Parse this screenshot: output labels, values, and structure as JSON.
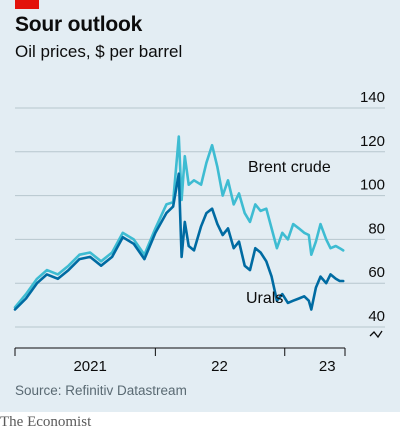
{
  "header": {
    "title": "Sour outlook",
    "subtitle": "Oil prices, $ per barrel"
  },
  "footer": {
    "source": "Source: Refinitiv Datastream",
    "brand": "The Economist"
  },
  "colors": {
    "background": "#e3edf3",
    "brent": "#3ebcd2",
    "urals": "#006ba2",
    "accent_red": "#e3120b",
    "grid": "#b7c6ce"
  },
  "chart_data": {
    "type": "line",
    "title": "Sour outlook",
    "subtitle": "Oil prices, $ per barrel",
    "xlabel": "",
    "ylabel": "",
    "ylim": [
      40,
      140
    ],
    "y_ticks": [
      40,
      60,
      80,
      100,
      120,
      140
    ],
    "y_axis_side": "right",
    "y_axis_break": true,
    "grid": true,
    "x_tick_labels": [
      {
        "label": "2021",
        "at": "2021-07-01"
      },
      {
        "label": "22",
        "at": "2022-07-01"
      },
      {
        "label": "23",
        "at": "2023-05-01"
      }
    ],
    "x_year_boundaries": [
      "2021-01-01",
      "2022-01-01",
      "2023-01-01"
    ],
    "xlim": [
      "2020-12-01",
      "2023-06-20"
    ],
    "series": [
      {
        "name": "Brent crude",
        "color": "#3ebcd2",
        "points": [
          [
            "2020-12-01",
            49
          ],
          [
            "2021-01-01",
            55
          ],
          [
            "2021-02-01",
            62
          ],
          [
            "2021-03-01",
            66
          ],
          [
            "2021-04-01",
            64
          ],
          [
            "2021-05-01",
            68
          ],
          [
            "2021-06-01",
            73
          ],
          [
            "2021-07-01",
            74
          ],
          [
            "2021-08-01",
            70
          ],
          [
            "2021-09-01",
            74
          ],
          [
            "2021-10-01",
            83
          ],
          [
            "2021-11-01",
            80
          ],
          [
            "2021-12-01",
            73
          ],
          [
            "2022-01-01",
            85
          ],
          [
            "2022-02-01",
            96
          ],
          [
            "2022-02-20",
            97
          ],
          [
            "2022-03-08",
            127
          ],
          [
            "2022-03-16",
            98
          ],
          [
            "2022-03-25",
            118
          ],
          [
            "2022-04-05",
            105
          ],
          [
            "2022-04-20",
            107
          ],
          [
            "2022-05-10",
            105
          ],
          [
            "2022-05-25",
            115
          ],
          [
            "2022-06-10",
            123
          ],
          [
            "2022-06-25",
            113
          ],
          [
            "2022-07-10",
            100
          ],
          [
            "2022-07-25",
            107
          ],
          [
            "2022-08-10",
            96
          ],
          [
            "2022-08-25",
            101
          ],
          [
            "2022-09-10",
            92
          ],
          [
            "2022-09-25",
            88
          ],
          [
            "2022-10-10",
            96
          ],
          [
            "2022-10-25",
            93
          ],
          [
            "2022-11-10",
            94
          ],
          [
            "2022-11-25",
            85
          ],
          [
            "2022-12-10",
            76
          ],
          [
            "2022-12-25",
            83
          ],
          [
            "2023-01-10",
            80
          ],
          [
            "2023-01-25",
            87
          ],
          [
            "2023-02-10",
            85
          ],
          [
            "2023-02-25",
            83
          ],
          [
            "2023-03-10",
            82
          ],
          [
            "2023-03-17",
            73
          ],
          [
            "2023-03-30",
            79
          ],
          [
            "2023-04-12",
            87
          ],
          [
            "2023-04-28",
            80
          ],
          [
            "2023-05-10",
            76
          ],
          [
            "2023-05-25",
            77
          ],
          [
            "2023-06-05",
            76
          ],
          [
            "2023-06-15",
            75
          ]
        ]
      },
      {
        "name": "Urals",
        "color": "#006ba2",
        "points": [
          [
            "2020-12-01",
            48
          ],
          [
            "2021-01-01",
            53
          ],
          [
            "2021-02-01",
            60
          ],
          [
            "2021-03-01",
            64
          ],
          [
            "2021-04-01",
            62
          ],
          [
            "2021-05-01",
            66
          ],
          [
            "2021-06-01",
            71
          ],
          [
            "2021-07-01",
            72
          ],
          [
            "2021-08-01",
            68
          ],
          [
            "2021-09-01",
            72
          ],
          [
            "2021-10-01",
            81
          ],
          [
            "2021-11-01",
            78
          ],
          [
            "2021-12-01",
            71
          ],
          [
            "2022-01-01",
            83
          ],
          [
            "2022-02-01",
            92
          ],
          [
            "2022-02-20",
            95
          ],
          [
            "2022-03-08",
            110
          ],
          [
            "2022-03-16",
            72
          ],
          [
            "2022-03-25",
            88
          ],
          [
            "2022-04-05",
            77
          ],
          [
            "2022-04-20",
            75
          ],
          [
            "2022-05-10",
            86
          ],
          [
            "2022-05-25",
            92
          ],
          [
            "2022-06-10",
            94
          ],
          [
            "2022-06-25",
            87
          ],
          [
            "2022-07-10",
            82
          ],
          [
            "2022-07-25",
            85
          ],
          [
            "2022-08-10",
            76
          ],
          [
            "2022-08-25",
            79
          ],
          [
            "2022-09-10",
            68
          ],
          [
            "2022-09-25",
            66
          ],
          [
            "2022-10-10",
            76
          ],
          [
            "2022-10-25",
            74
          ],
          [
            "2022-11-10",
            70
          ],
          [
            "2022-11-25",
            63
          ],
          [
            "2022-12-10",
            52
          ],
          [
            "2022-12-25",
            55
          ],
          [
            "2023-01-10",
            51
          ],
          [
            "2023-01-25",
            52
          ],
          [
            "2023-02-10",
            53
          ],
          [
            "2023-02-25",
            54
          ],
          [
            "2023-03-10",
            52
          ],
          [
            "2023-03-17",
            48
          ],
          [
            "2023-03-30",
            58
          ],
          [
            "2023-04-12",
            63
          ],
          [
            "2023-04-28",
            60
          ],
          [
            "2023-05-10",
            64
          ],
          [
            "2023-05-25",
            62
          ],
          [
            "2023-06-05",
            61
          ],
          [
            "2023-06-15",
            61
          ]
        ]
      }
    ]
  }
}
